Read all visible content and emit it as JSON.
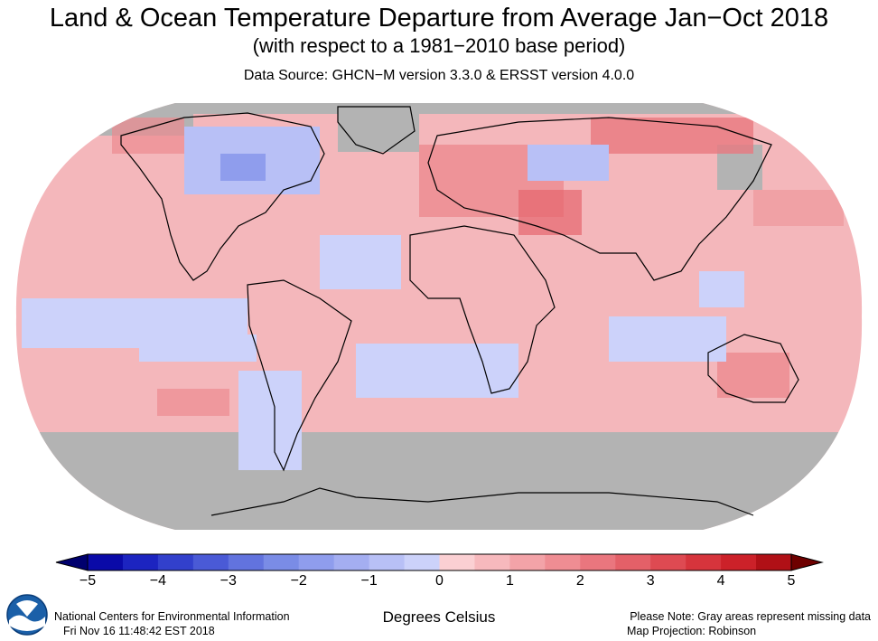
{
  "header": {
    "title": "Land & Ocean Temperature Departure from Average Jan−Oct 2018",
    "subtitle": "(with respect to a 1981−2010 base period)",
    "source": "Data Source: GHCN−M version 3.3.0 & ERSST version 4.0.0"
  },
  "legend": {
    "units": "Degrees Celsius",
    "ticks": [
      "−5",
      "−4",
      "−3",
      "−2",
      "−1",
      "0",
      "1",
      "2",
      "3",
      "4",
      "5"
    ],
    "range": [
      -5,
      5
    ],
    "colors_neg": [
      "#0a0aa8",
      "#1c24c0",
      "#3240cc",
      "#4a5ad6",
      "#6273de",
      "#7a8ce6",
      "#8f9ded",
      "#a4aef1",
      "#b8c0f6",
      "#ccd2fa"
    ],
    "colors_pos": [
      "#fbd0d3",
      "#f7b9bd",
      "#f3a3a8",
      "#ef8d93",
      "#ea767e",
      "#e46068",
      "#de4a52",
      "#d6343c",
      "#cc2129",
      "#b01016"
    ]
  },
  "map": {
    "projection": "Robinson",
    "missing_color": "#b3b3b3",
    "land_outline_color": "#000000"
  },
  "footer": {
    "org": "National Centers for Environmental Information",
    "timestamp": "Fri Nov 16 11:48:42 EST 2018",
    "note1": "Please Note: Gray areas represent missing data",
    "note2": "Map Projection: Robinson",
    "logo_text": "NOAA"
  }
}
